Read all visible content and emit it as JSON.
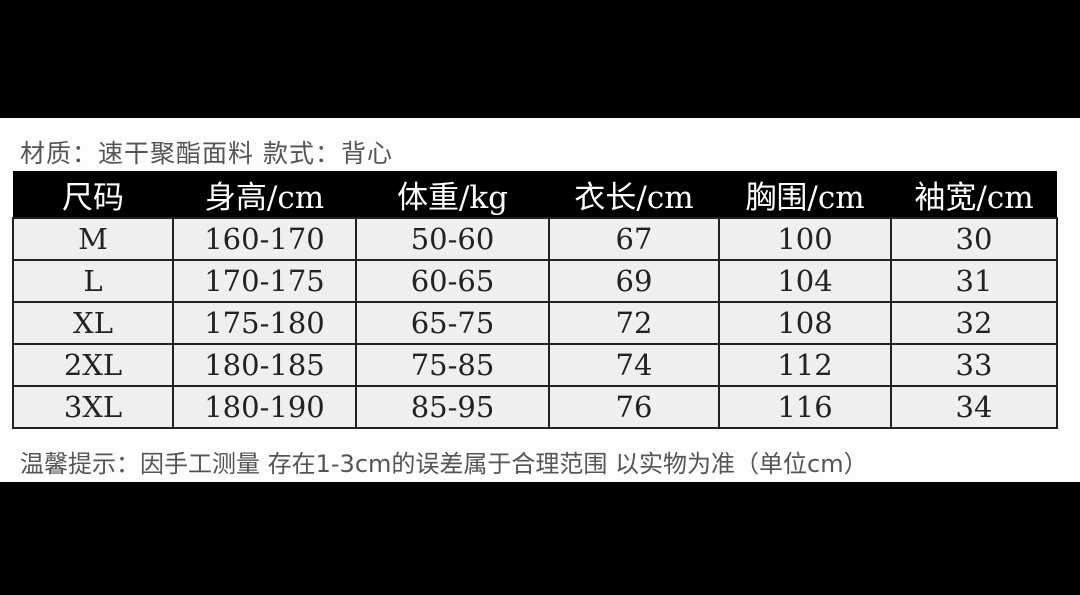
{
  "title": "材质：速干聚酯面料  款式：背心",
  "table": {
    "headers": [
      "尺码",
      "身高/cm",
      "体重/kg",
      "衣长/cm",
      "胸围/cm",
      "袖宽/cm"
    ],
    "rows": [
      [
        "M",
        "160-170",
        "50-60",
        "67",
        "100",
        "30"
      ],
      [
        "L",
        "170-175",
        "60-65",
        "69",
        "104",
        "31"
      ],
      [
        "XL",
        "175-180",
        "65-75",
        "72",
        "108",
        "32"
      ],
      [
        "2XL",
        "180-185",
        "75-85",
        "74",
        "112",
        "33"
      ],
      [
        "3XL",
        "180-190",
        "85-95",
        "76",
        "116",
        "34"
      ]
    ]
  },
  "note": "温馨提示：因手工测量 存在1-3cm的误差属于合理范围  以实物为准（单位cm）"
}
